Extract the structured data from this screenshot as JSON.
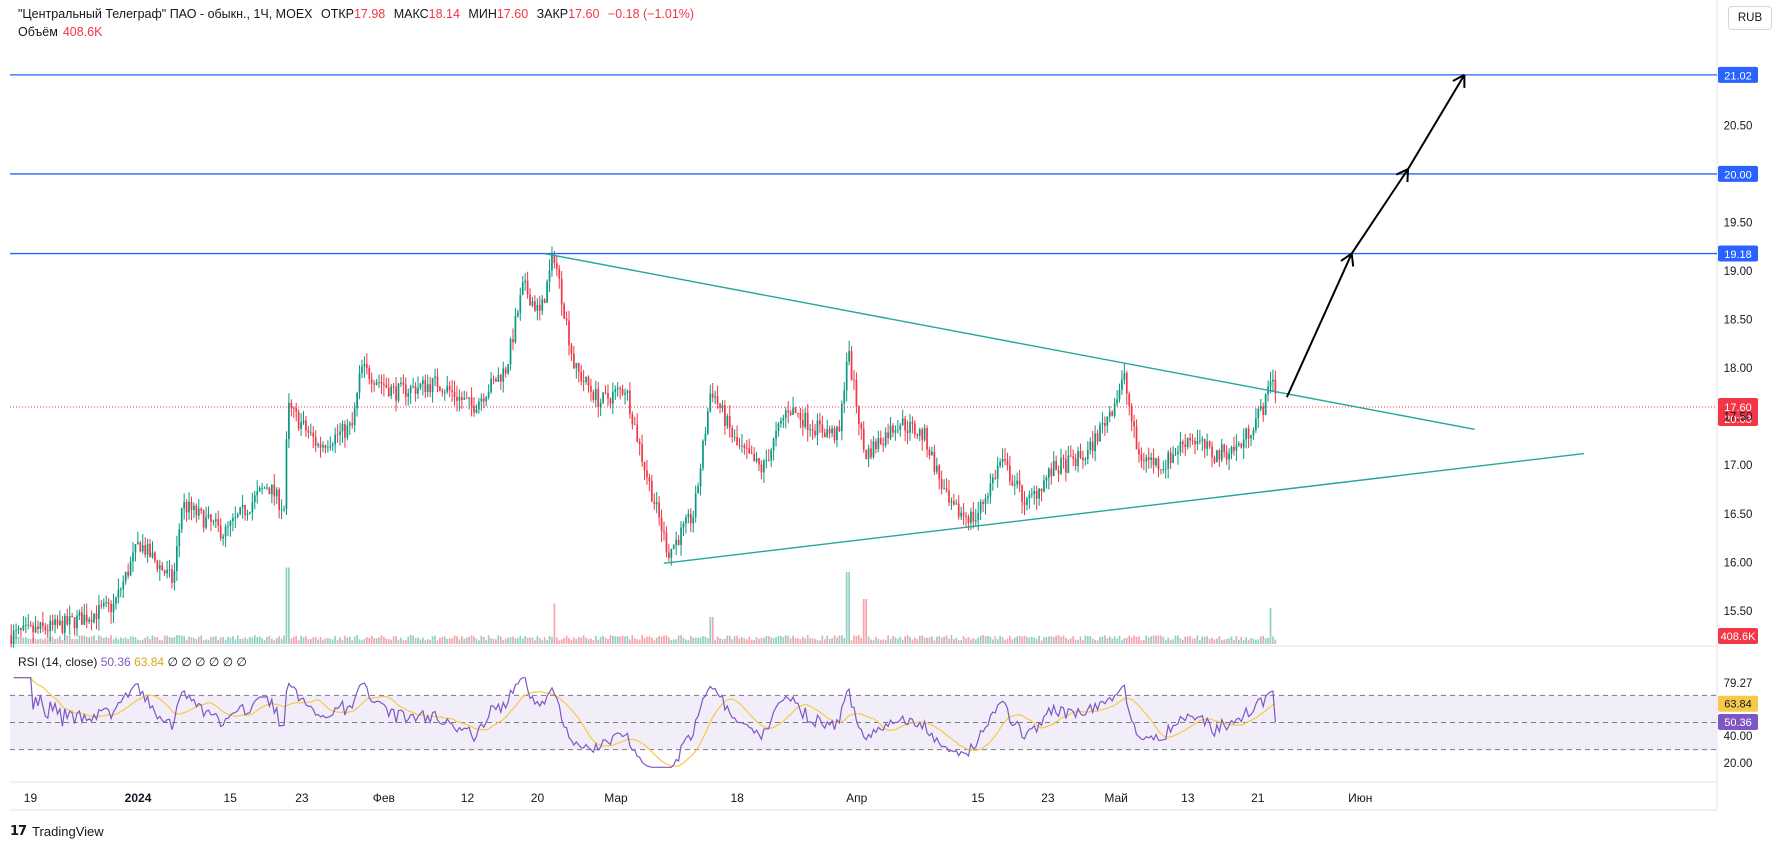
{
  "header": {
    "symbol": "\"Центральный Телеграф\" ПАО - обыкн., 1Ч, MOEX",
    "open_label": "ОТКР",
    "open_value": "17.98",
    "high_label": "МАКС",
    "high_value": "18.14",
    "low_label": "МИН",
    "low_value": "17.60",
    "close_label": "ЗАКР",
    "close_value": "17.60",
    "change": "−0.18 (−1.01%)",
    "volume_label": "Объём",
    "volume_value": "408.6K"
  },
  "currency_button": "RUB",
  "rsi_header": {
    "label": "RSI (14, close)",
    "rsi_value": "50.36",
    "ma_value": "63.84",
    "zeros": "∅ ∅ ∅ ∅ ∅ ∅"
  },
  "branding": {
    "logo_text": "TradingView"
  },
  "colors": {
    "up": "#089981",
    "down": "#f23645",
    "level_line": "#2962ff",
    "trendline": "#26a69a",
    "rsi_line": "#7e57c2",
    "rsi_ma": "#f7c948",
    "rsi_band": "#ede7f6",
    "price_line": "#f23645"
  },
  "chart_data": {
    "type": "candlestick",
    "price_axis": {
      "ylim": [
        15.2,
        21.4
      ],
      "ticks": [
        "15.50",
        "16.00",
        "16.50",
        "17.00",
        "17.50",
        "18.00",
        "18.50",
        "19.00",
        "19.50",
        "20.50"
      ],
      "tick_values": [
        15.5,
        16.0,
        16.5,
        17.0,
        17.5,
        18.0,
        18.5,
        19.0,
        19.5,
        20.5
      ]
    },
    "time_axis": {
      "labels": [
        "19",
        "2024",
        "15",
        "23",
        "Фев",
        "12",
        "20",
        "Мар",
        "18",
        "Апр",
        "15",
        "23",
        "Май",
        "13",
        "21",
        "Июн"
      ],
      "bold": [
        "2024"
      ]
    },
    "horizontal_levels": [
      {
        "value": 21.02,
        "label": "21.02"
      },
      {
        "value": 20.0,
        "label": "20.00"
      },
      {
        "value": 19.18,
        "label": "19.18"
      }
    ],
    "last_price": {
      "value": 17.6,
      "label": "17.60",
      "countdown": "20:03"
    },
    "volume_badge": "408.6K",
    "trendlines": [
      {
        "name": "upper",
        "from": {
          "t": 0.313,
          "p": 19.18
        },
        "to": {
          "t": 0.858,
          "p": 17.37
        }
      },
      {
        "name": "lower",
        "from": {
          "t": 0.383,
          "p": 15.99
        },
        "to": {
          "t": 0.922,
          "p": 17.12
        }
      }
    ],
    "projection_arrows": [
      {
        "from": {
          "t": 0.748,
          "p": 17.7
        },
        "to": {
          "t": 0.786,
          "p": 19.18
        }
      },
      {
        "from": {
          "t": 0.786,
          "p": 19.18
        },
        "to": {
          "t": 0.819,
          "p": 20.05
        }
      },
      {
        "from": {
          "t": 0.819,
          "p": 20.05
        },
        "to": {
          "t": 0.852,
          "p": 21.02
        }
      }
    ],
    "series_keypoints": [
      [
        0.0,
        15.25
      ],
      [
        0.03,
        15.35
      ],
      [
        0.06,
        15.55
      ],
      [
        0.075,
        16.2
      ],
      [
        0.095,
        15.8
      ],
      [
        0.1,
        16.6
      ],
      [
        0.125,
        16.3
      ],
      [
        0.15,
        16.8
      ],
      [
        0.16,
        16.55
      ],
      [
        0.162,
        17.6
      ],
      [
        0.18,
        17.2
      ],
      [
        0.2,
        17.4
      ],
      [
        0.205,
        18.0
      ],
      [
        0.225,
        17.75
      ],
      [
        0.25,
        17.85
      ],
      [
        0.27,
        17.6
      ],
      [
        0.29,
        18.0
      ],
      [
        0.3,
        18.85
      ],
      [
        0.31,
        18.55
      ],
      [
        0.318,
        19.18
      ],
      [
        0.33,
        18.0
      ],
      [
        0.345,
        17.65
      ],
      [
        0.36,
        17.8
      ],
      [
        0.37,
        17.05
      ],
      [
        0.385,
        16.1
      ],
      [
        0.4,
        16.5
      ],
      [
        0.41,
        17.8
      ],
      [
        0.425,
        17.2
      ],
      [
        0.44,
        16.95
      ],
      [
        0.455,
        17.6
      ],
      [
        0.47,
        17.4
      ],
      [
        0.485,
        17.3
      ],
      [
        0.49,
        18.2
      ],
      [
        0.5,
        17.1
      ],
      [
        0.52,
        17.45
      ],
      [
        0.535,
        17.3
      ],
      [
        0.55,
        16.55
      ],
      [
        0.565,
        16.45
      ],
      [
        0.58,
        17.05
      ],
      [
        0.595,
        16.6
      ],
      [
        0.61,
        16.95
      ],
      [
        0.63,
        17.1
      ],
      [
        0.645,
        17.6
      ],
      [
        0.652,
        17.9
      ],
      [
        0.66,
        17.1
      ],
      [
        0.675,
        17.0
      ],
      [
        0.69,
        17.3
      ],
      [
        0.705,
        17.1
      ],
      [
        0.72,
        17.2
      ],
      [
        0.735,
        17.65
      ],
      [
        0.738,
        17.95
      ],
      [
        0.742,
        17.7
      ]
    ],
    "volume_spikes": [
      {
        "t": 0.162,
        "v": 0.85
      },
      {
        "t": 0.318,
        "v": 0.45
      },
      {
        "t": 0.49,
        "v": 0.8
      },
      {
        "t": 0.5,
        "v": 0.5
      },
      {
        "t": 0.41,
        "v": 0.3
      },
      {
        "t": 0.738,
        "v": 0.4
      }
    ],
    "rsi": {
      "ylim": [
        15,
        85
      ],
      "ticks": [
        "79.27",
        "51.67",
        "40.00",
        "20.00"
      ],
      "tick_values": [
        79.27,
        51.67,
        40.0,
        20.0
      ],
      "band": [
        30,
        70
      ],
      "current": {
        "value": 50.36,
        "label": "50.36"
      },
      "ma": {
        "value": 63.84,
        "label": "63.84"
      }
    }
  }
}
